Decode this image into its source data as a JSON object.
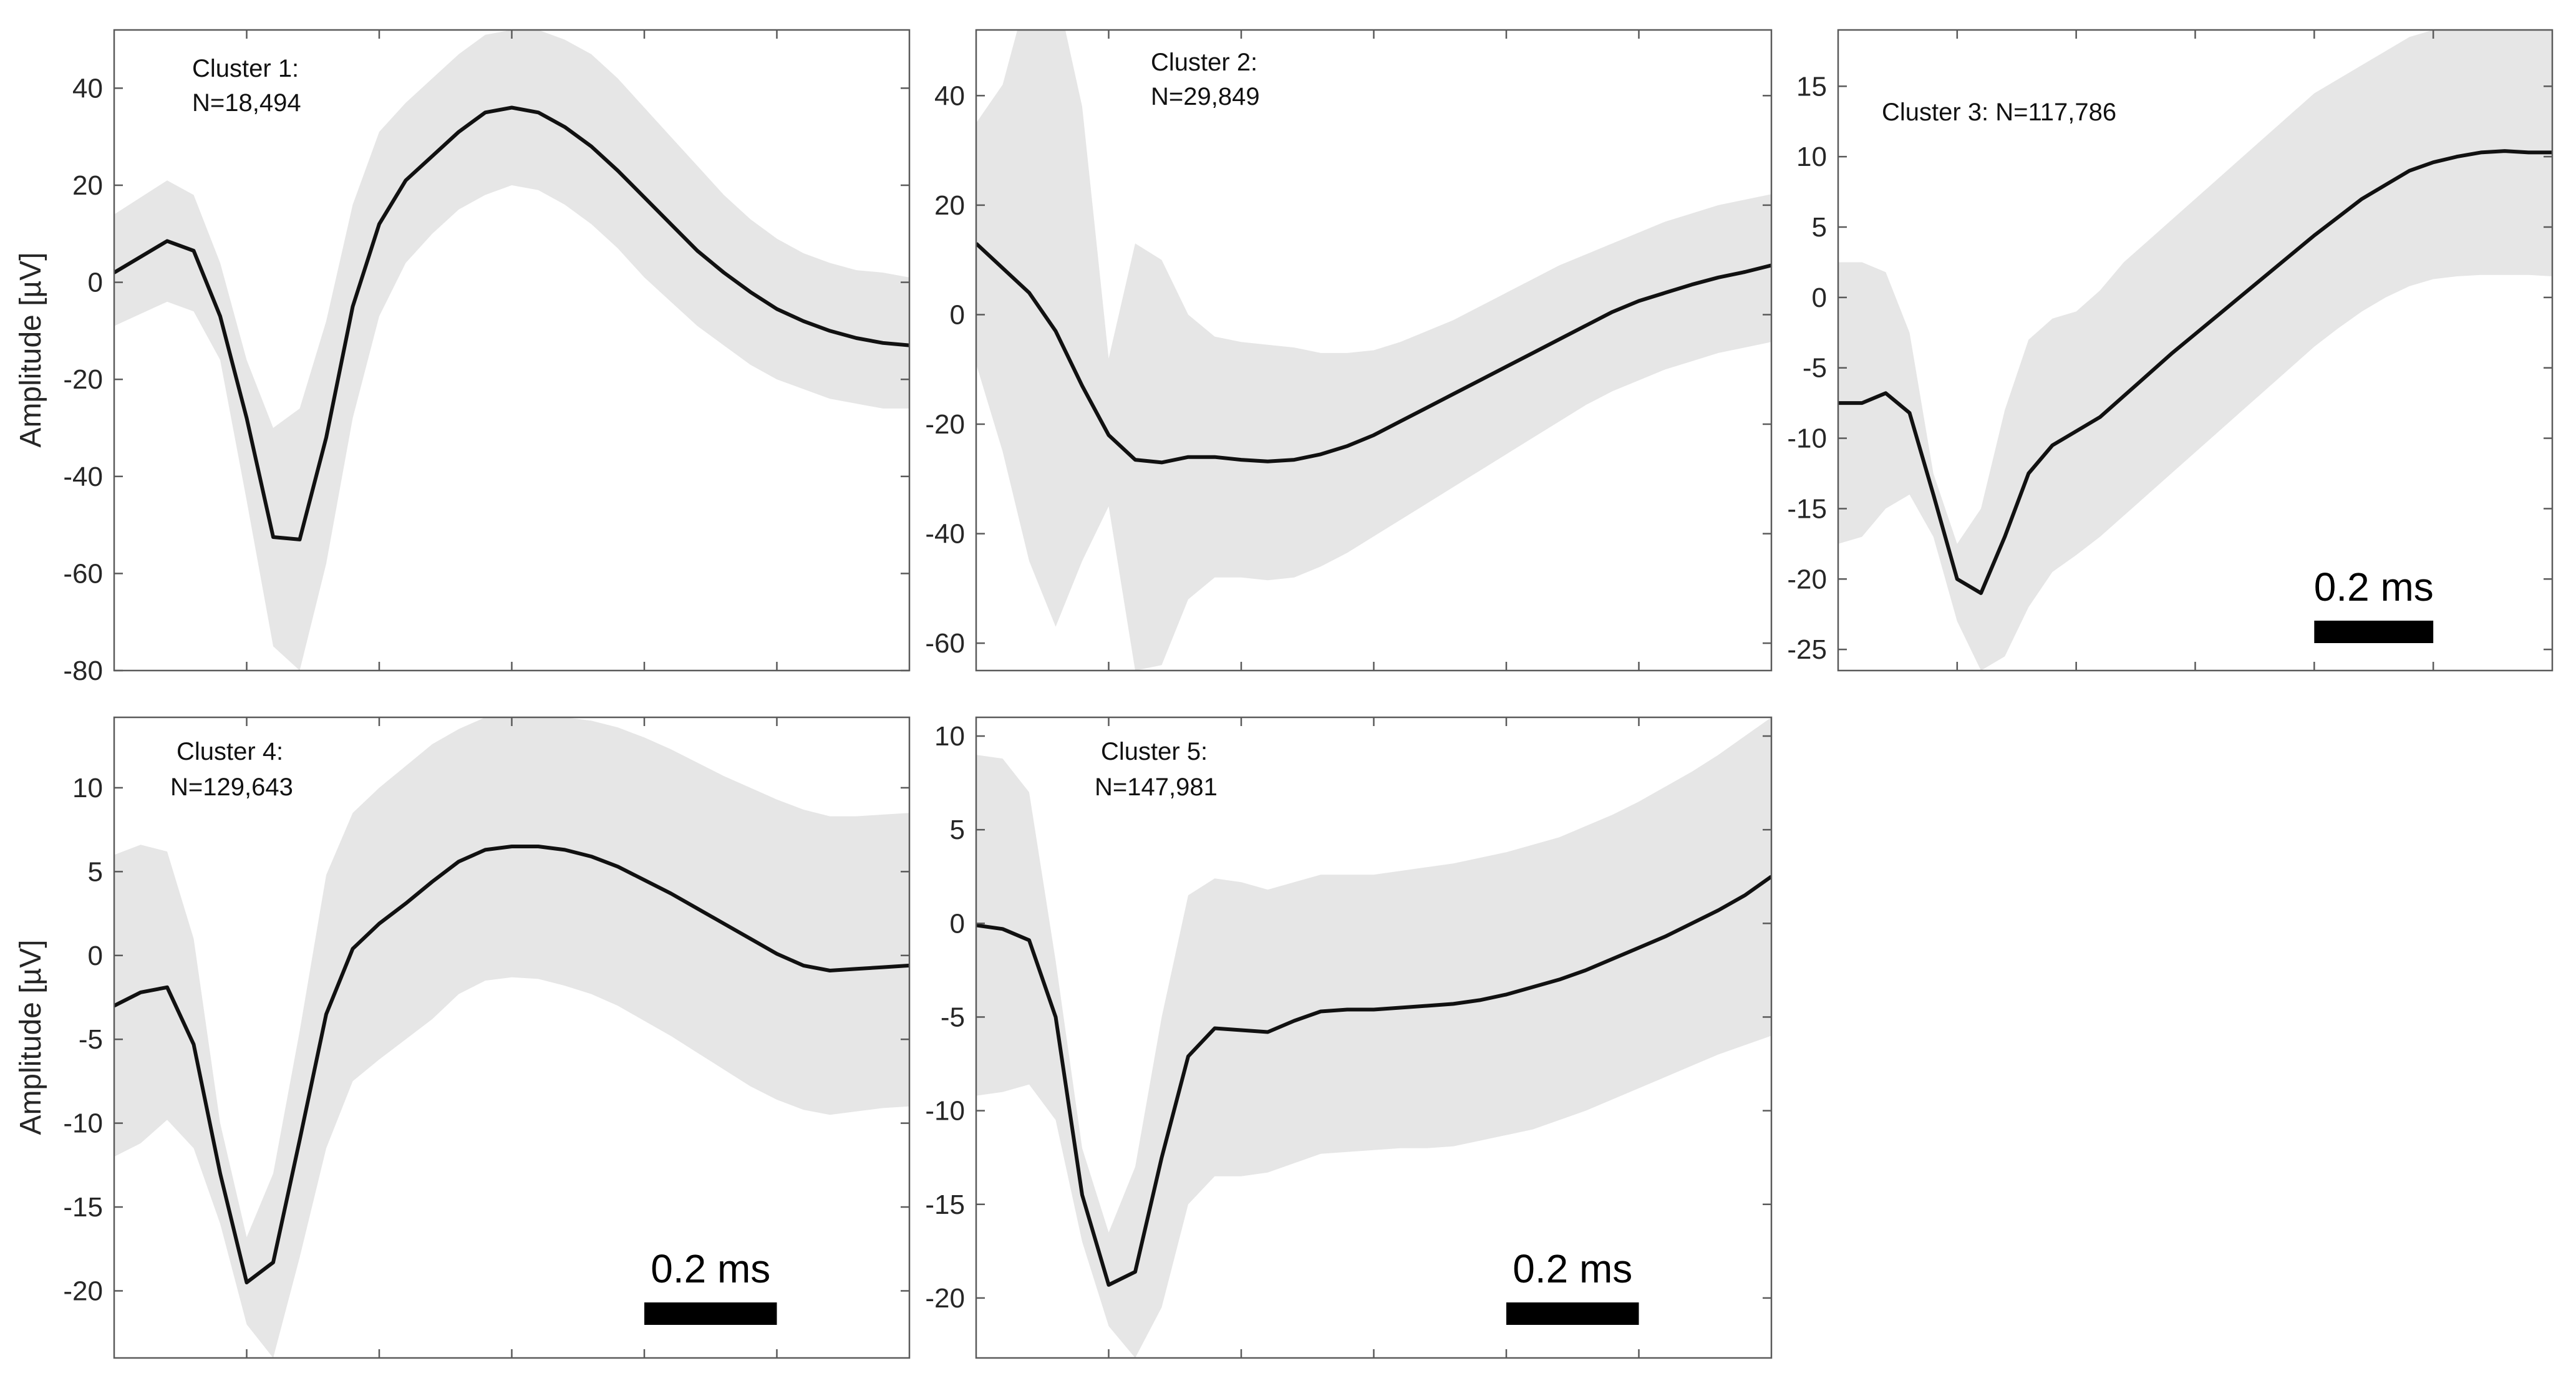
{
  "chart_data": [
    {
      "type": "line",
      "panel": "cluster-1",
      "annotation": [
        "Cluster 1:",
        "N=18,494"
      ],
      "ylabel": "Amplitude [µV]",
      "ylim": [
        -80,
        52
      ],
      "yticks": [
        40,
        20,
        0,
        -20,
        -40,
        -60,
        -80
      ],
      "ytick_labels": [
        "40",
        "20",
        "0",
        "-20",
        "-40",
        "-60",
        "-80"
      ],
      "xlim": [
        0,
        1.2
      ],
      "scale_bar": null,
      "series": [
        {
          "x": [
            0,
            0.08,
            0.12,
            0.16,
            0.2,
            0.24,
            0.28,
            0.32,
            0.36,
            0.4,
            0.44,
            0.48,
            0.52,
            0.56,
            0.6,
            0.64,
            0.68,
            0.72,
            0.76,
            0.8,
            0.84,
            0.88,
            0.92,
            0.96,
            1.0,
            1.04,
            1.08,
            1.12,
            1.16,
            1.2
          ],
          "mean": [
            2,
            8.5,
            6.5,
            -7,
            -28,
            -52.5,
            -53,
            -32,
            -5,
            12,
            21,
            26,
            31,
            35,
            36,
            35,
            32,
            28,
            23,
            17.5,
            12,
            6.5,
            2,
            -2,
            -5.5,
            -8,
            -10,
            -11.5,
            -12.5,
            -13
          ],
          "upper": [
            14,
            21,
            18,
            4,
            -16,
            -30,
            -26,
            -8,
            16,
            31,
            37,
            42,
            47,
            51,
            52,
            52,
            50,
            47,
            42,
            36,
            30,
            24,
            18,
            13,
            9,
            6,
            4,
            2.5,
            2,
            1
          ],
          "lower": [
            -9,
            -4,
            -6,
            -16,
            -45,
            -75,
            -80,
            -58,
            -28,
            -7,
            4,
            10,
            15,
            18,
            20,
            19,
            16,
            12,
            7,
            1,
            -4,
            -9,
            -13,
            -17,
            -20,
            -22,
            -24,
            -25,
            -26,
            -26
          ]
        }
      ]
    },
    {
      "type": "line",
      "panel": "cluster-2",
      "annotation": [
        "Cluster 2:",
        "N=29,849"
      ],
      "ylabel": "",
      "ylim": [
        -65,
        52
      ],
      "yticks": [
        40,
        20,
        0,
        -20,
        -40,
        -60
      ],
      "ytick_labels": [
        "40",
        "20",
        "0",
        "-20",
        "-40",
        "-60"
      ],
      "xlim": [
        0,
        1.2
      ],
      "scale_bar": null,
      "series": [
        {
          "x": [
            0,
            0.04,
            0.08,
            0.12,
            0.16,
            0.2,
            0.24,
            0.28,
            0.32,
            0.36,
            0.4,
            0.44,
            0.48,
            0.52,
            0.56,
            0.6,
            0.64,
            0.68,
            0.72,
            0.76,
            0.8,
            0.84,
            0.88,
            0.92,
            0.96,
            1.0,
            1.04,
            1.08,
            1.12,
            1.16,
            1.2
          ],
          "mean": [
            13,
            8.5,
            4,
            -3,
            -13,
            -22,
            -26.5,
            -27,
            -26,
            -26,
            -26.5,
            -26.8,
            -26.5,
            -25.5,
            -24,
            -22,
            -19.5,
            -17,
            -14.5,
            -12,
            -9.5,
            -7,
            -4.5,
            -2,
            0.5,
            2.5,
            4,
            5.5,
            6.8,
            7.8,
            9
          ],
          "upper": [
            35,
            42,
            60,
            60,
            38,
            -8,
            13,
            10,
            0,
            -4,
            -5,
            -5.5,
            -6,
            -7,
            -7,
            -6.5,
            -5,
            -3,
            -1,
            1.5,
            4,
            6.5,
            9,
            11,
            13,
            15,
            17,
            18.5,
            20,
            21,
            22
          ],
          "lower": [
            -9,
            -25,
            -45,
            -57,
            -45,
            -35,
            -65,
            -64,
            -52,
            -48,
            -48,
            -48.5,
            -48,
            -46,
            -43.5,
            -40.5,
            -37.5,
            -34.5,
            -31.5,
            -28.5,
            -25.5,
            -22.5,
            -19.5,
            -16.5,
            -14,
            -12,
            -10,
            -8.5,
            -7,
            -6,
            -5
          ]
        }
      ]
    },
    {
      "type": "line",
      "panel": "cluster-3",
      "annotation": [
        "Cluster 3:  N=117,786"
      ],
      "ylabel": "",
      "ylim": [
        -26.5,
        19
      ],
      "yticks": [
        15,
        10,
        5,
        0,
        -5,
        -10,
        -15,
        -20,
        -25
      ],
      "ytick_labels": [
        "15",
        "10",
        "5",
        "0",
        "-5",
        "-10",
        "-15",
        "-20",
        "-25"
      ],
      "xlim": [
        0,
        1.2
      ],
      "scale_bar": {
        "label": "0.2 ms",
        "length_x": 0.2,
        "anchor_x": 0.8
      },
      "series": [
        {
          "x": [
            0,
            0.04,
            0.08,
            0.12,
            0.16,
            0.2,
            0.24,
            0.28,
            0.32,
            0.36,
            0.4,
            0.44,
            0.48,
            0.52,
            0.56,
            0.6,
            0.64,
            0.68,
            0.72,
            0.76,
            0.8,
            0.84,
            0.88,
            0.92,
            0.96,
            1.0,
            1.04,
            1.08,
            1.12,
            1.16,
            1.2
          ],
          "mean": [
            -7.5,
            -7.5,
            -6.8,
            -8.2,
            -14,
            -20,
            -21,
            -17,
            -12.5,
            -10.5,
            -9.5,
            -8.5,
            -7,
            -5.5,
            -4,
            -2.6,
            -1.2,
            0.2,
            1.6,
            3,
            4.4,
            5.7,
            7,
            8,
            9,
            9.6,
            10,
            10.3,
            10.4,
            10.3,
            10.3
          ],
          "upper": [
            2.5,
            2.5,
            1.8,
            -2.5,
            -12.5,
            -17.5,
            -15,
            -8,
            -3,
            -1.5,
            -1,
            0.5,
            2.5,
            4,
            5.5,
            7,
            8.5,
            10,
            11.5,
            13,
            14.5,
            15.5,
            16.5,
            17.5,
            18.5,
            19,
            19.5,
            19.5,
            19.5,
            19,
            19
          ],
          "lower": [
            -17.5,
            -17,
            -15,
            -14,
            -17,
            -23,
            -26.5,
            -25.5,
            -22,
            -19.5,
            -18.3,
            -17,
            -15.5,
            -14,
            -12.5,
            -11,
            -9.5,
            -8,
            -6.5,
            -5,
            -3.5,
            -2.2,
            -1,
            0,
            0.8,
            1.3,
            1.5,
            1.6,
            1.6,
            1.6,
            1.5
          ]
        }
      ]
    },
    {
      "type": "line",
      "panel": "cluster-4",
      "annotation": [
        "Cluster 4:",
        "N=129,643"
      ],
      "ylabel": "Amplitude [µV]",
      "ylim": [
        -24,
        14.2
      ],
      "yticks": [
        10,
        5,
        0,
        -5,
        -10,
        -15,
        -20
      ],
      "ytick_labels": [
        "10",
        "5",
        "0",
        "-5",
        "-10",
        "-15",
        "-20"
      ],
      "xlim": [
        0,
        1.2
      ],
      "scale_bar": {
        "label": "0.2 ms",
        "length_x": 0.2,
        "anchor_x": 0.8
      },
      "series": [
        {
          "x": [
            0,
            0.04,
            0.08,
            0.12,
            0.16,
            0.2,
            0.24,
            0.28,
            0.32,
            0.36,
            0.4,
            0.44,
            0.48,
            0.52,
            0.56,
            0.6,
            0.64,
            0.68,
            0.72,
            0.76,
            0.8,
            0.84,
            0.88,
            0.92,
            0.96,
            1.0,
            1.04,
            1.08,
            1.12,
            1.16,
            1.2
          ],
          "mean": [
            -3,
            -2.2,
            -1.9,
            -5.3,
            -13,
            -19.5,
            -18.3,
            -11,
            -3.5,
            0.4,
            1.9,
            3.1,
            4.4,
            5.6,
            6.3,
            6.5,
            6.5,
            6.3,
            5.9,
            5.3,
            4.5,
            3.7,
            2.8,
            1.9,
            1,
            0.1,
            -0.6,
            -0.9,
            -0.8,
            -0.7,
            -0.6
          ],
          "upper": [
            6,
            6.6,
            6.2,
            1,
            -10,
            -16.8,
            -13,
            -4.5,
            4.8,
            8.5,
            10,
            11.3,
            12.6,
            13.5,
            14.2,
            14.2,
            14.2,
            14.2,
            14,
            13.6,
            13,
            12.3,
            11.5,
            10.7,
            10,
            9.3,
            8.7,
            8.3,
            8.3,
            8.4,
            8.5
          ],
          "lower": [
            -12,
            -11.2,
            -9.8,
            -11.5,
            -16,
            -22,
            -24,
            -18,
            -11.5,
            -7.5,
            -6.2,
            -5,
            -3.8,
            -2.3,
            -1.5,
            -1.3,
            -1.4,
            -1.8,
            -2.3,
            -3,
            -3.9,
            -4.8,
            -5.8,
            -6.8,
            -7.8,
            -8.6,
            -9.2,
            -9.5,
            -9.3,
            -9.1,
            -9
          ]
        }
      ]
    },
    {
      "type": "line",
      "panel": "cluster-5",
      "annotation": [
        "Cluster 5:",
        "N=147,981"
      ],
      "ylabel": "",
      "ylim": [
        -23.2,
        11
      ],
      "yticks": [
        10,
        5,
        0,
        -5,
        -10,
        -15,
        -20
      ],
      "ytick_labels": [
        "10",
        "5",
        "0",
        "-5",
        "-10",
        "-15",
        "-20"
      ],
      "xlim": [
        0,
        1.2
      ],
      "scale_bar": {
        "label": "0.2 ms",
        "length_x": 0.2,
        "anchor_x": 0.8
      },
      "series": [
        {
          "x": [
            0,
            0.04,
            0.08,
            0.12,
            0.16,
            0.2,
            0.24,
            0.28,
            0.32,
            0.36,
            0.4,
            0.44,
            0.48,
            0.52,
            0.56,
            0.6,
            0.64,
            0.68,
            0.72,
            0.76,
            0.8,
            0.84,
            0.88,
            0.92,
            0.96,
            1.0,
            1.04,
            1.08,
            1.12,
            1.16,
            1.2
          ],
          "mean": [
            -0.1,
            -0.3,
            -0.9,
            -5,
            -14.5,
            -19.3,
            -18.6,
            -12.5,
            -7.1,
            -5.6,
            -5.7,
            -5.8,
            -5.2,
            -4.7,
            -4.6,
            -4.6,
            -4.5,
            -4.4,
            -4.3,
            -4.1,
            -3.8,
            -3.4,
            -3,
            -2.5,
            -1.9,
            -1.3,
            -0.7,
            0,
            0.7,
            1.5,
            2.5
          ],
          "upper": [
            9,
            8.8,
            7,
            -2,
            -12,
            -16.5,
            -13,
            -5,
            1.5,
            2.4,
            2.2,
            1.8,
            2.2,
            2.6,
            2.6,
            2.6,
            2.8,
            3,
            3.2,
            3.5,
            3.8,
            4.2,
            4.6,
            5.2,
            5.8,
            6.5,
            7.3,
            8.1,
            9,
            10,
            11
          ],
          "lower": [
            -9.2,
            -9,
            -8.6,
            -10.5,
            -17,
            -21.5,
            -23.2,
            -20.5,
            -15,
            -13.5,
            -13.5,
            -13.3,
            -12.8,
            -12.3,
            -12.2,
            -12.1,
            -12,
            -12,
            -11.9,
            -11.6,
            -11.3,
            -11,
            -10.5,
            -10,
            -9.4,
            -8.8,
            -8.2,
            -7.6,
            -7,
            -6.5,
            -6
          ]
        }
      ]
    }
  ]
}
